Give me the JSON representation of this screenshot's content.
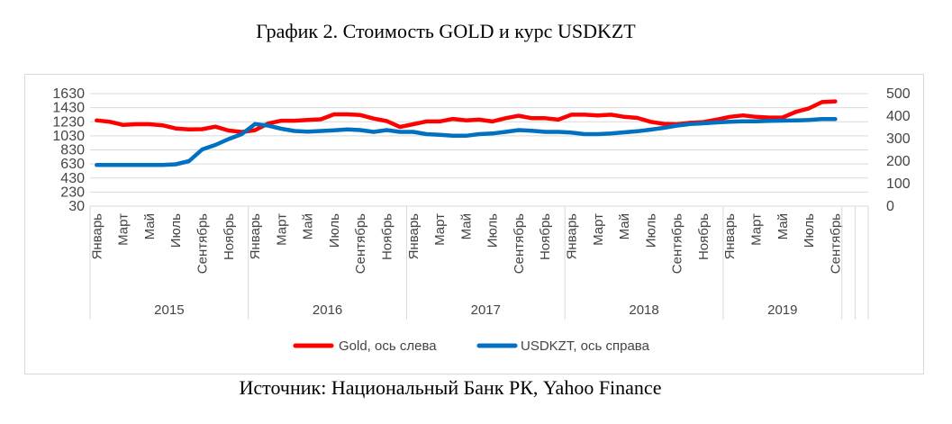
{
  "title": "График 2. Стоимость GOLD и курс USDKZT",
  "source": "Источник: Национальный Банк РК, Yahoo Finance",
  "chart_data": {
    "type": "line",
    "x": [
      "2015-01",
      "2015-02",
      "2015-03",
      "2015-04",
      "2015-05",
      "2015-06",
      "2015-07",
      "2015-08",
      "2015-09",
      "2015-10",
      "2015-11",
      "2015-12",
      "2016-01",
      "2016-02",
      "2016-03",
      "2016-04",
      "2016-05",
      "2016-06",
      "2016-07",
      "2016-08",
      "2016-09",
      "2016-10",
      "2016-11",
      "2016-12",
      "2017-01",
      "2017-02",
      "2017-03",
      "2017-04",
      "2017-05",
      "2017-06",
      "2017-07",
      "2017-08",
      "2017-09",
      "2017-10",
      "2017-11",
      "2017-12",
      "2018-01",
      "2018-02",
      "2018-03",
      "2018-04",
      "2018-05",
      "2018-06",
      "2018-07",
      "2018-08",
      "2018-09",
      "2018-10",
      "2018-11",
      "2018-12",
      "2019-01",
      "2019-02",
      "2019-03",
      "2019-04",
      "2019-05",
      "2019-06",
      "2019-07",
      "2019-08",
      "2019-09"
    ],
    "month_labels": [
      "Январь",
      "Март",
      "Май",
      "Июль",
      "Сентябрь",
      "Ноябрь"
    ],
    "year_labels": [
      "2015",
      "2016",
      "2017",
      "2018",
      "2019"
    ],
    "series": [
      {
        "name": "Gold, ось слева",
        "axis": "left",
        "color": "#ff0000",
        "values": [
          1250,
          1230,
          1185,
          1195,
          1195,
          1180,
          1135,
          1120,
          1125,
          1160,
          1105,
          1085,
          1110,
          1205,
          1245,
          1245,
          1255,
          1265,
          1335,
          1335,
          1325,
          1275,
          1240,
          1155,
          1195,
          1235,
          1235,
          1270,
          1250,
          1260,
          1235,
          1280,
          1315,
          1280,
          1280,
          1260,
          1330,
          1330,
          1320,
          1330,
          1300,
          1285,
          1230,
          1200,
          1195,
          1215,
          1225,
          1260,
          1300,
          1320,
          1300,
          1290,
          1290,
          1370,
          1420,
          1510,
          1520
        ]
      },
      {
        "name": "USDKZT, ось справа",
        "axis": "right",
        "color": "#0070c0",
        "values": [
          183,
          183,
          183,
          183,
          183,
          183,
          186,
          200,
          252,
          272,
          298,
          320,
          365,
          358,
          344,
          334,
          331,
          334,
          337,
          341,
          338,
          330,
          338,
          330,
          330,
          320,
          317,
          313,
          313,
          320,
          323,
          330,
          338,
          335,
          330,
          330,
          327,
          320,
          320,
          323,
          328,
          333,
          340,
          348,
          358,
          365,
          368,
          372,
          375,
          377,
          377,
          379,
          380,
          381,
          383,
          387,
          387
        ]
      }
    ],
    "y_left": {
      "ticks": [
        30,
        230,
        430,
        630,
        830,
        1030,
        1230,
        1430,
        1630
      ],
      "range": [
        30,
        1630
      ]
    },
    "y_right": {
      "ticks": [
        0,
        100,
        200,
        300,
        400,
        500
      ],
      "range": [
        0,
        500
      ]
    },
    "grid": true,
    "legend": "bottom"
  }
}
